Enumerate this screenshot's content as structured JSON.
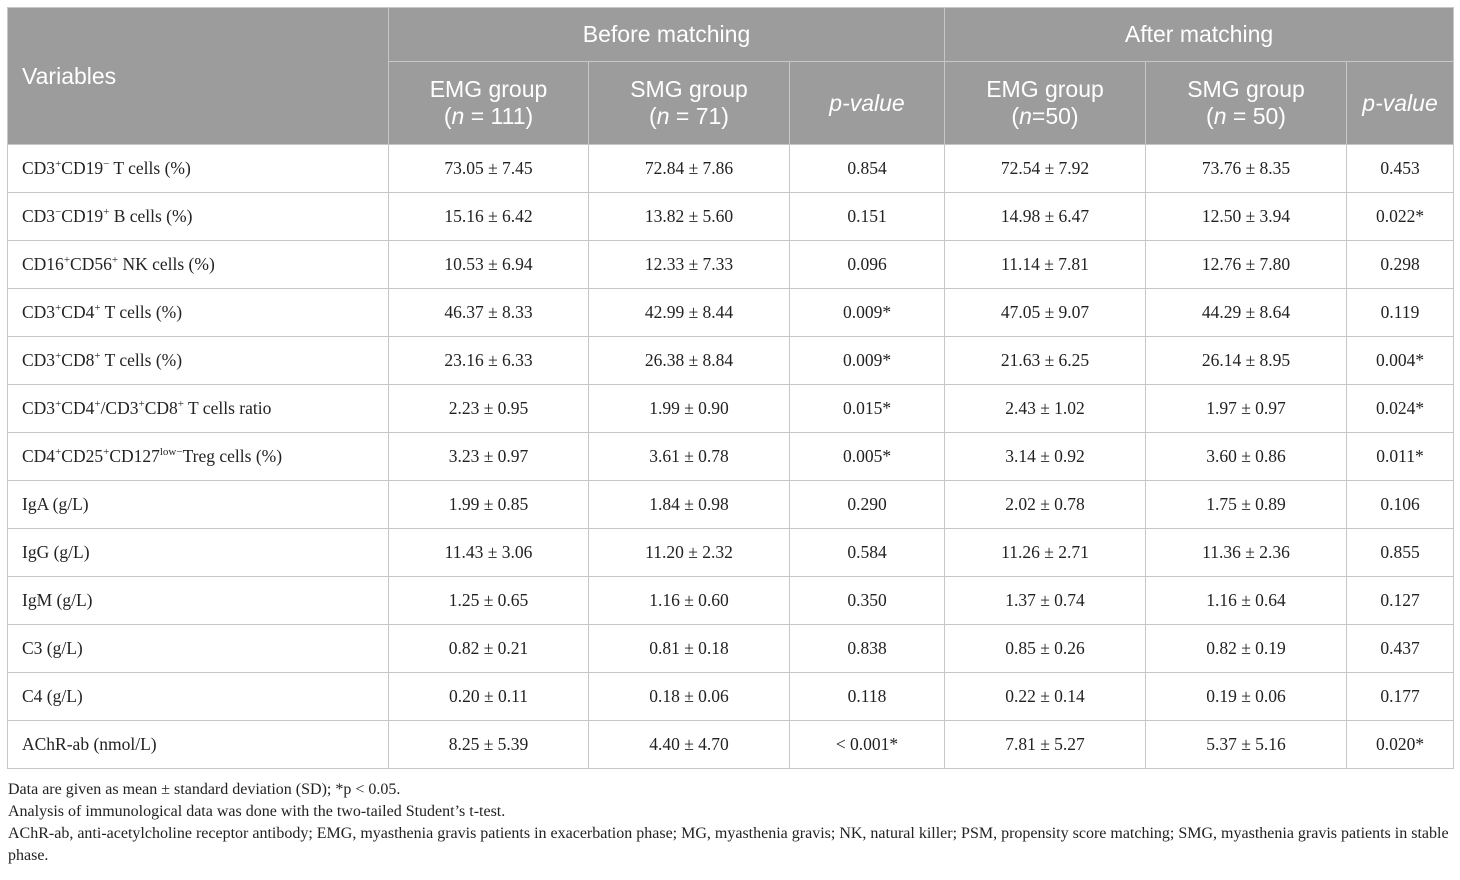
{
  "header": {
    "variables": "Variables",
    "before": "Before matching",
    "after": "After matching",
    "cols": [
      {
        "line1": "EMG group",
        "pre": "(",
        "n": "n",
        "post": " = 111)"
      },
      {
        "line1": "SMG group",
        "pre": "(",
        "n": "n",
        "post": " = 71)"
      },
      {
        "pvalue": "p-value"
      },
      {
        "line1": "EMG group",
        "pre": "(",
        "n": "n",
        "post": "=50)"
      },
      {
        "line1": "SMG group",
        "pre": "(",
        "n": "n",
        "post": " = 50)"
      },
      {
        "pvalue": "p-value"
      }
    ]
  },
  "rows": [
    {
      "label": {
        "parts": [
          {
            "t": "CD3"
          },
          {
            "sup": "+"
          },
          {
            "t": "CD19"
          },
          {
            "sup": "−"
          },
          {
            "t": " T cells (%)"
          }
        ]
      },
      "values": [
        "73.05 ± 7.45",
        "72.84 ± 7.86",
        "0.854",
        "72.54 ± 7.92",
        "73.76 ± 8.35",
        "0.453"
      ]
    },
    {
      "label": {
        "parts": [
          {
            "t": "CD3"
          },
          {
            "sup": "−"
          },
          {
            "t": "CD19"
          },
          {
            "sup": "+"
          },
          {
            "t": " B cells (%)"
          }
        ]
      },
      "values": [
        "15.16 ± 6.42",
        "13.82 ± 5.60",
        "0.151",
        "14.98 ± 6.47",
        "12.50 ± 3.94",
        "0.022*"
      ]
    },
    {
      "label": {
        "parts": [
          {
            "t": "CD16"
          },
          {
            "sup": "+"
          },
          {
            "t": "CD56"
          },
          {
            "sup": "+"
          },
          {
            "t": " NK cells (%)"
          }
        ]
      },
      "values": [
        "10.53 ± 6.94",
        "12.33 ± 7.33",
        "0.096",
        "11.14 ± 7.81",
        "12.76 ± 7.80",
        "0.298"
      ]
    },
    {
      "label": {
        "parts": [
          {
            "t": "CD3"
          },
          {
            "sup": "+"
          },
          {
            "t": "CD4"
          },
          {
            "sup": "+"
          },
          {
            "t": " T cells (%)"
          }
        ]
      },
      "values": [
        "46.37 ± 8.33",
        "42.99 ± 8.44",
        "0.009*",
        "47.05 ± 9.07",
        "44.29 ± 8.64",
        "0.119"
      ]
    },
    {
      "label": {
        "parts": [
          {
            "t": "CD3"
          },
          {
            "sup": "+"
          },
          {
            "t": "CD8"
          },
          {
            "sup": "+"
          },
          {
            "t": " T cells (%)"
          }
        ]
      },
      "values": [
        "23.16 ± 6.33",
        "26.38 ± 8.84",
        "0.009*",
        "21.63 ± 6.25",
        "26.14 ± 8.95",
        "0.004*"
      ]
    },
    {
      "label": {
        "parts": [
          {
            "t": "CD3"
          },
          {
            "sup": "+"
          },
          {
            "t": "CD4"
          },
          {
            "sup": "+"
          },
          {
            "t": "/CD3"
          },
          {
            "sup": "+"
          },
          {
            "t": "CD8"
          },
          {
            "sup": "+"
          },
          {
            "t": " T cells ratio"
          }
        ]
      },
      "values": [
        "2.23 ± 0.95",
        "1.99 ± 0.90",
        "0.015*",
        "2.43 ± 1.02",
        "1.97 ± 0.97",
        "0.024*"
      ]
    },
    {
      "label": {
        "parts": [
          {
            "t": "CD4"
          },
          {
            "sup": "+"
          },
          {
            "t": "CD25"
          },
          {
            "sup": "+"
          },
          {
            "t": "CD127"
          },
          {
            "sup": "low−"
          },
          {
            "t": "Treg cells (%)"
          }
        ]
      },
      "values": [
        "3.23 ± 0.97",
        "3.61 ± 0.78",
        "0.005*",
        "3.14 ± 0.92",
        "3.60 ± 0.86",
        "0.011*"
      ]
    },
    {
      "label": {
        "parts": [
          {
            "t": "IgA (g/L)"
          }
        ]
      },
      "values": [
        "1.99 ± 0.85",
        "1.84 ± 0.98",
        "0.290",
        "2.02 ± 0.78",
        "1.75 ± 0.89",
        "0.106"
      ]
    },
    {
      "label": {
        "parts": [
          {
            "t": "IgG (g/L)"
          }
        ]
      },
      "values": [
        "11.43 ± 3.06",
        "11.20 ± 2.32",
        "0.584",
        "11.26 ± 2.71",
        "11.36 ± 2.36",
        "0.855"
      ]
    },
    {
      "label": {
        "parts": [
          {
            "t": "IgM (g/L)"
          }
        ]
      },
      "values": [
        "1.25 ± 0.65",
        "1.16 ± 0.60",
        "0.350",
        "1.37 ± 0.74",
        "1.16 ± 0.64",
        "0.127"
      ]
    },
    {
      "label": {
        "parts": [
          {
            "t": "C3 (g/L)"
          }
        ]
      },
      "values": [
        "0.82 ± 0.21",
        "0.81 ± 0.18",
        "0.838",
        "0.85 ± 0.26",
        "0.82 ± 0.19",
        "0.437"
      ]
    },
    {
      "label": {
        "parts": [
          {
            "t": "C4 (g/L)"
          }
        ]
      },
      "values": [
        "0.20 ± 0.11",
        "0.18 ± 0.06",
        "0.118",
        "0.22 ± 0.14",
        "0.19 ± 0.06",
        "0.177"
      ]
    },
    {
      "label": {
        "parts": [
          {
            "t": "AChR-ab (nmol/L)"
          }
        ]
      },
      "values": [
        "8.25 ± 5.39",
        "4.40 ± 4.70",
        "< 0.001*",
        "7.81 ± 5.27",
        "5.37 ± 5.16",
        "0.020*"
      ]
    }
  ],
  "footnotes": [
    "Data are given as mean ± standard deviation (SD); *p < 0.05.",
    "Analysis of immunological data was done with the two-tailed Student’s t-test.",
    "AChR-ab, anti-acetylcholine receptor antibody; EMG, myasthenia gravis patients in exacerbation phase; MG, myasthenia gravis; NK, natural killer; PSM, propensity score matching; SMG, myasthenia gravis patients in stable phase."
  ],
  "colors": {
    "header_bg": "#9c9c9c",
    "header_text": "#ffffff",
    "border": "#c7c7c7",
    "body_text": "#222222"
  }
}
